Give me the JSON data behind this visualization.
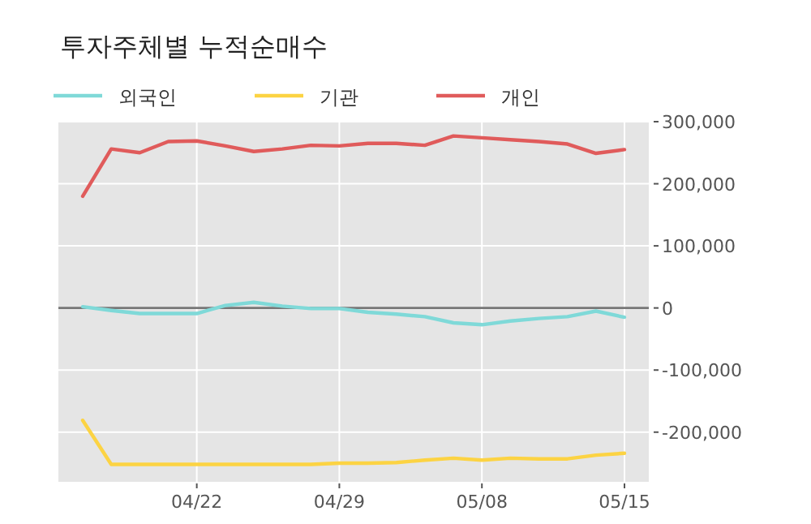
{
  "chart_data": {
    "type": "line",
    "title": "투자주체별 누적순매수",
    "categories": [
      null,
      null,
      null,
      null,
      "04/22",
      null,
      null,
      null,
      null,
      "04/29",
      null,
      null,
      null,
      null,
      "05/08",
      null,
      null,
      null,
      null,
      "05/15"
    ],
    "series": [
      {
        "name": "외국인",
        "color": "#7fd9d8",
        "values": [
          2000,
          -4000,
          -9000,
          -9000,
          -9000,
          4000,
          9000,
          3000,
          -1000,
          -1000,
          -7000,
          -10000,
          -14000,
          -24000,
          -27000,
          -21000,
          -17000,
          -14000,
          -5000,
          -15000
        ]
      },
      {
        "name": "기관",
        "color": "#fcd343",
        "values": [
          -181000,
          -252000,
          -252000,
          -252000,
          -252000,
          -252000,
          -252000,
          -252000,
          -252000,
          -250000,
          -250000,
          -249000,
          -245000,
          -242000,
          -245000,
          -242000,
          -243000,
          -243000,
          -237000,
          -234000
        ]
      },
      {
        "name": "개인",
        "color": "#e05b5b",
        "values": [
          180000,
          256000,
          250000,
          268000,
          269000,
          261000,
          252000,
          256000,
          262000,
          261000,
          265000,
          265000,
          262000,
          277000,
          274000,
          271000,
          268000,
          264000,
          249000,
          255000
        ]
      }
    ],
    "ylim": [
      -280000,
      300000
    ],
    "yticks": [
      {
        "value": 300000,
        "label": "300,000"
      },
      {
        "value": 200000,
        "label": "200,000"
      },
      {
        "value": 100000,
        "label": "100,000"
      },
      0,
      {
        "value": -100000,
        "label": "-100,000"
      },
      {
        "value": -200000,
        "label": "-200,000"
      }
    ],
    "ref_lines": [
      {
        "axis": "y",
        "value": 0,
        "color": "#777777"
      }
    ],
    "grid": true,
    "legend": "top left"
  }
}
